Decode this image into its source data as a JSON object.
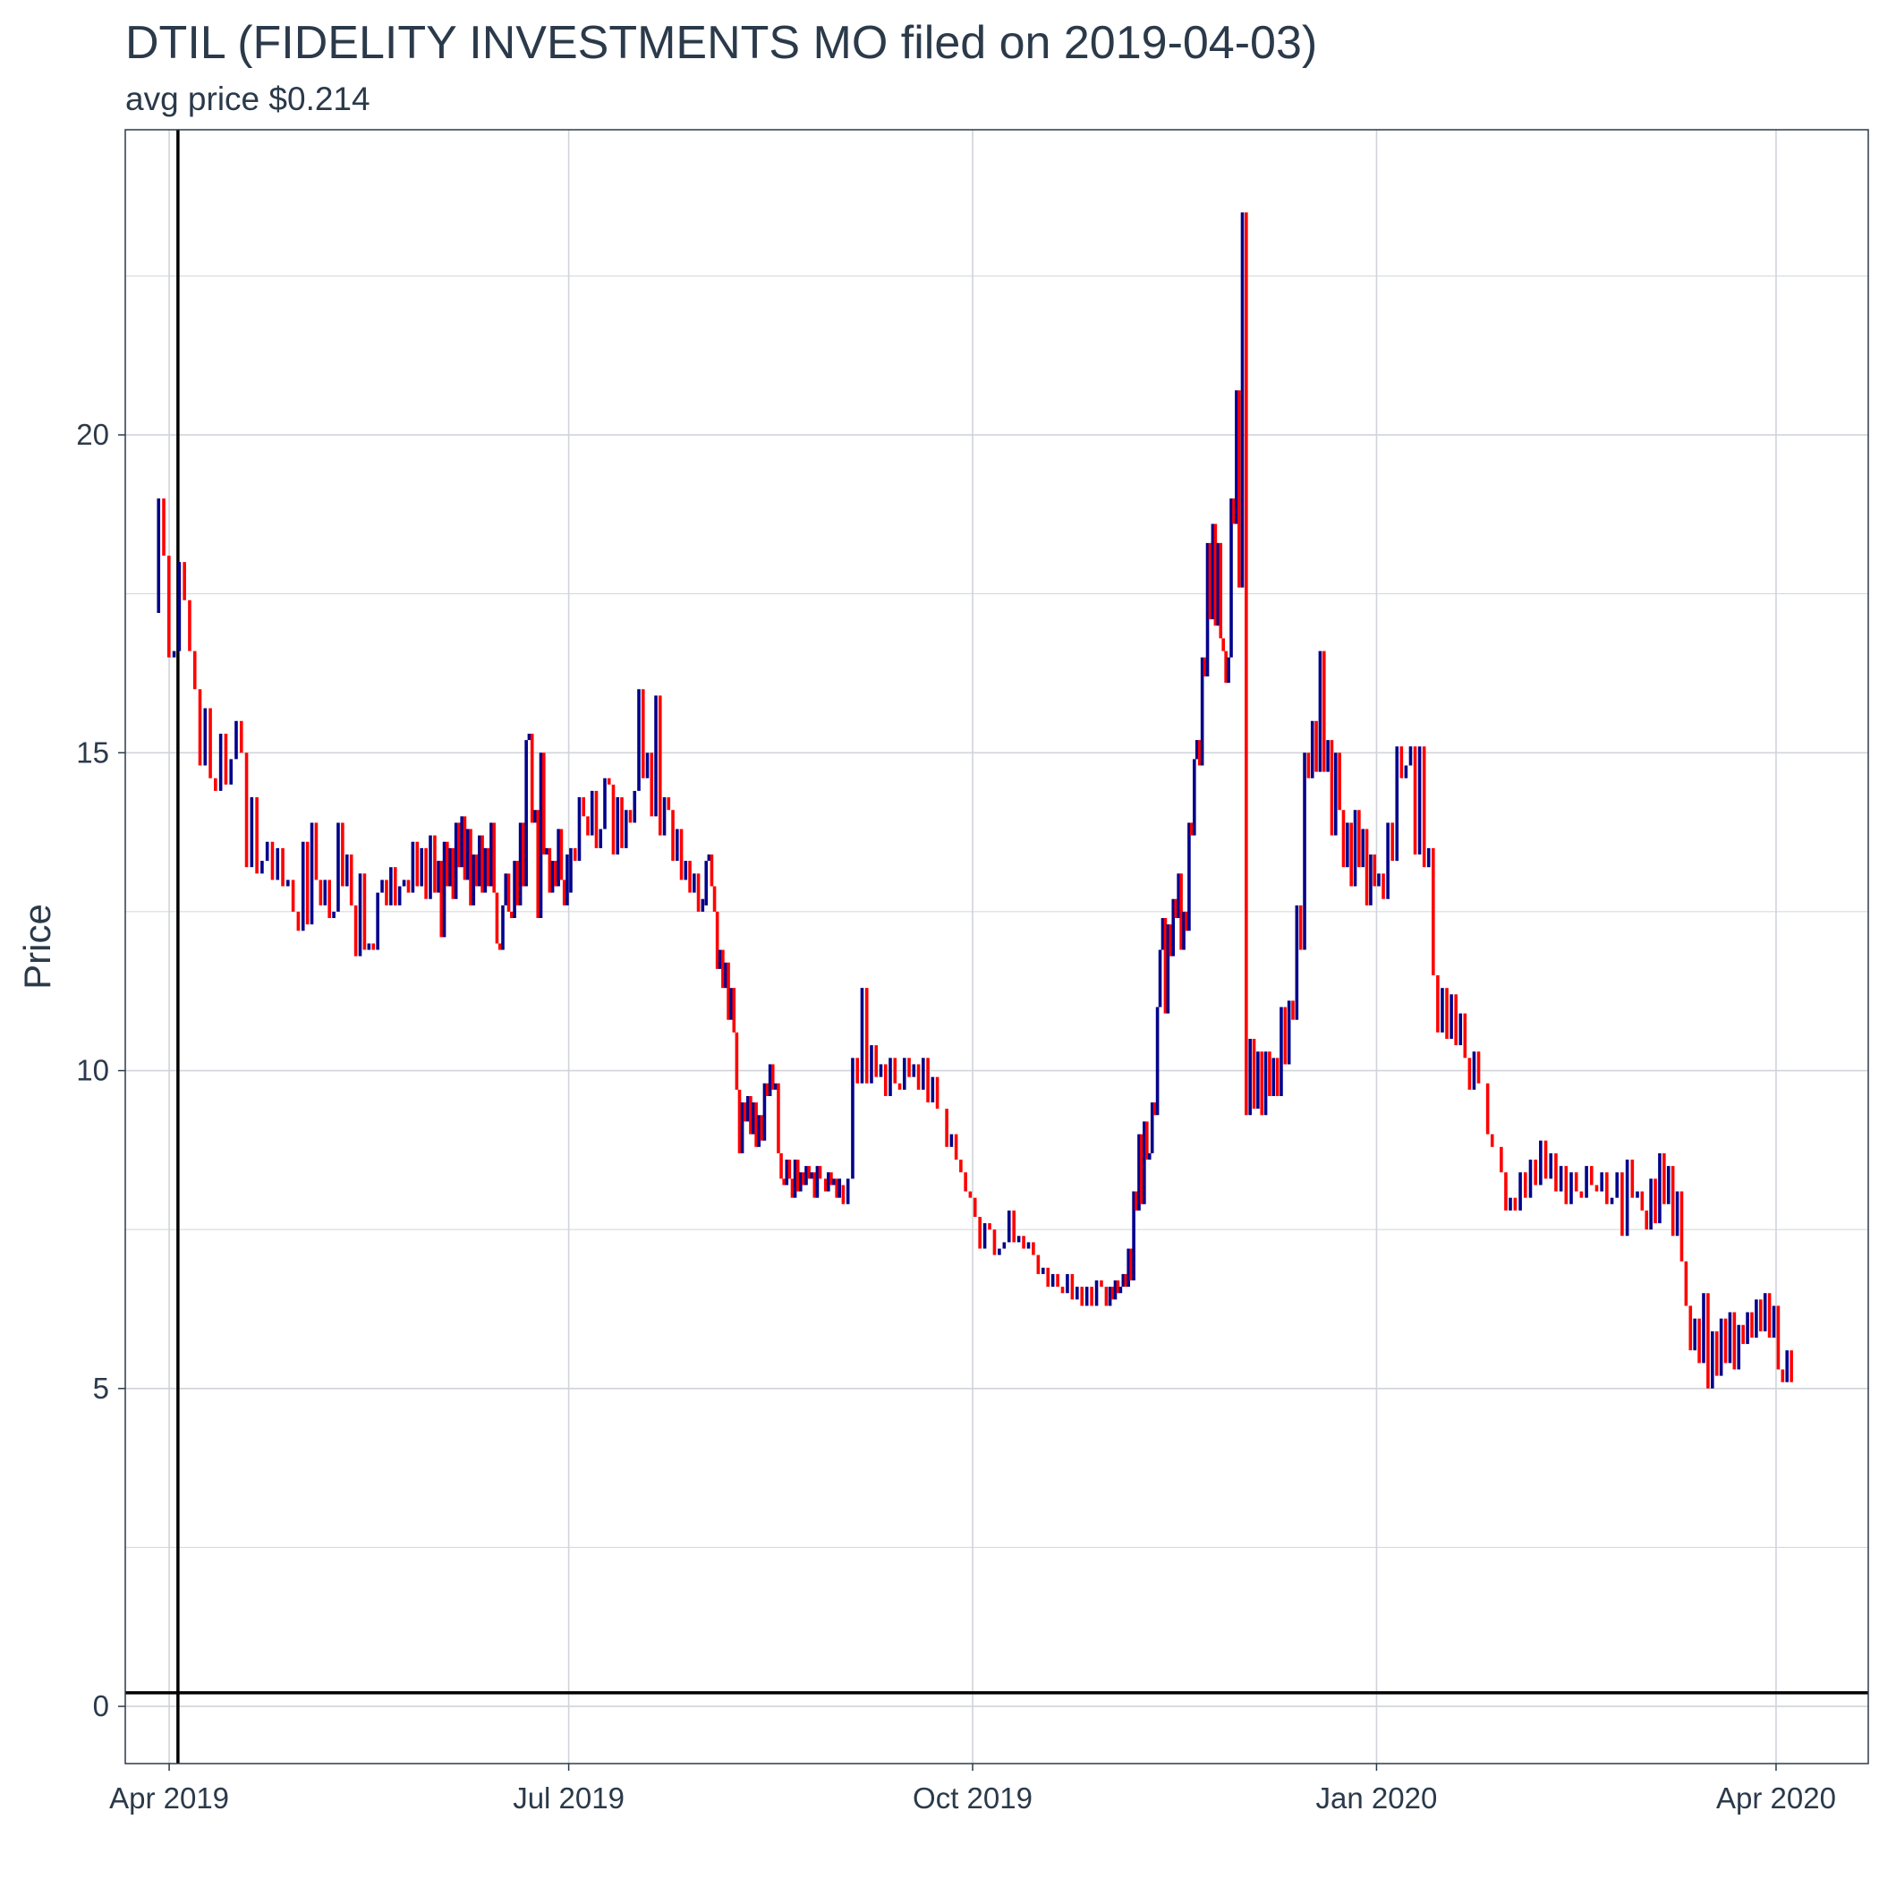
{
  "chart_data": {
    "type": "ohlc",
    "title": "DTIL (FIDELITY INVESTMENTS MO filed on 2019-04-03)",
    "subtitle": "avg price $0.214",
    "xlabel": "",
    "ylabel": "Price",
    "xlim": [
      "2019-03-22",
      "2020-04-22"
    ],
    "ylim": [
      -0.9,
      24.8
    ],
    "x_ticks": [
      {
        "date": "2019-04-01",
        "label": "Apr 2019"
      },
      {
        "date": "2019-07-01",
        "label": "Jul 2019"
      },
      {
        "date": "2019-10-01",
        "label": "Oct 2019"
      },
      {
        "date": "2020-01-01",
        "label": "Jan 2020"
      },
      {
        "date": "2020-04-01",
        "label": "Apr 2020"
      }
    ],
    "y_ticks": [
      0,
      5,
      10,
      15,
      20
    ],
    "y_minor": [
      2.5,
      7.5,
      12.5,
      17.5,
      22.5
    ],
    "grid": true,
    "reference_lines": {
      "vertical_date": "2019-04-03",
      "horizontal_price": 0.214
    },
    "colors": {
      "up": "#00008b",
      "down": "#ff0000",
      "reference": "#000000",
      "grid": "#d0d4d9",
      "text": "#2b3a4a",
      "panel_border": "#2b3a4a"
    },
    "bar_segments": [
      {
        "start": "2019-03-29",
        "end": "2019-05-01",
        "v": [
          17.2,
          19.0,
          18.1,
          16.5,
          16.6,
          18.0,
          17.4,
          16.6,
          16.0,
          14.8,
          15.7,
          14.6,
          14.4,
          15.3,
          14.5,
          14.9,
          15.5,
          15.0,
          13.2,
          14.3,
          13.1,
          13.3,
          13.6,
          13.0,
          13.5,
          12.9,
          13.0,
          12.5,
          12.2
        ]
      },
      {
        "start": "2019-05-01",
        "end": "2019-06-01",
        "v": [
          12.2,
          13.6,
          12.3,
          13.9,
          13.0,
          12.6,
          13.0,
          12.4,
          12.5,
          13.9,
          12.9,
          13.4,
          12.6,
          11.8,
          13.1,
          11.9,
          12.0,
          11.9,
          12.8,
          13.0,
          12.6,
          13.2,
          12.6,
          12.9,
          13.0,
          12.8,
          13.6,
          12.9,
          13.5,
          12.7,
          13.7,
          12.8
        ]
      },
      {
        "start": "2019-06-01",
        "end": "2019-07-01",
        "v": [
          12.8,
          13.3,
          12.1,
          13.6,
          12.9,
          13.5,
          12.7,
          13.9,
          13.2,
          14.0,
          13.0,
          13.8,
          12.6,
          13.4,
          12.9,
          13.7,
          12.8,
          13.5,
          12.9,
          13.9,
          12.8,
          12.0,
          11.9,
          12.6,
          13.1,
          12.5,
          12.4,
          13.3,
          12.6,
          13.9,
          12.9,
          15.2,
          15.3,
          13.9,
          14.1,
          12.4,
          15.0,
          13.4,
          13.5,
          12.8,
          13.3,
          12.9,
          13.8,
          13.0,
          12.6,
          13.4
        ]
      },
      {
        "start": "2019-07-01",
        "end": "2019-08-01",
        "v": [
          12.8,
          13.5,
          13.3,
          14.3,
          14.0,
          13.7,
          14.4,
          13.5,
          13.8,
          14.6,
          14.5,
          13.4,
          14.3,
          13.5,
          14.1,
          13.9,
          14.4,
          16.0,
          14.6,
          15.0,
          14.0,
          15.9,
          13.7,
          14.3,
          14.1,
          13.3,
          13.8,
          13.0,
          13.3,
          12.8,
          13.1,
          12.5,
          12.7
        ]
      },
      {
        "start": "2019-08-01",
        "end": "2019-09-01",
        "v": [
          12.6,
          13.3,
          13.4,
          12.9,
          12.5,
          11.6,
          11.9,
          11.3,
          11.7,
          10.8,
          11.3,
          10.6,
          9.7,
          8.7,
          9.5,
          9.2,
          9.6,
          9.0,
          9.5,
          8.8,
          9.3,
          8.9,
          9.8,
          9.6,
          10.1,
          9.7,
          9.8,
          8.7,
          8.3,
          8.2,
          8.6,
          8.3,
          8.0,
          8.6,
          8.1,
          8.4,
          8.2,
          8.5,
          8.3,
          8.4,
          8.0,
          8.5,
          8.3,
          8.3,
          8.1,
          8.4,
          8.2,
          8.3,
          8.0,
          8.3
        ]
      },
      {
        "start": "2019-09-01",
        "end": "2019-10-01",
        "v": [
          8.2,
          7.9,
          8.3,
          10.2,
          9.8,
          11.3,
          9.8,
          10.4,
          9.9,
          10.1,
          9.6,
          10.2,
          9.8,
          9.7,
          10.2,
          9.9,
          10.1,
          9.7,
          10.2,
          9.5,
          9.9,
          9.4,
          9.4,
          8.8,
          9.0,
          8.6,
          8.4,
          8.1,
          8.0
        ]
      },
      {
        "start": "2019-10-01",
        "end": "2019-11-01",
        "v": [
          8.0,
          7.7,
          7.2,
          7.6,
          7.5,
          7.1,
          7.2,
          7.3,
          7.8,
          7.3,
          7.4,
          7.2,
          7.3,
          7.1,
          6.8,
          6.9,
          6.6,
          6.8,
          6.6,
          6.5,
          6.8,
          6.4,
          6.6,
          6.3,
          6.6,
          6.3,
          6.7,
          6.6,
          6.3
        ]
      },
      {
        "start": "2019-11-01",
        "end": "2019-12-01",
        "v": [
          6.3,
          6.6,
          6.4,
          6.7,
          6.5,
          6.6,
          6.8,
          6.6,
          7.2,
          6.7,
          8.1,
          7.8,
          9.0,
          7.9,
          9.2,
          8.6,
          8.7,
          9.5,
          9.3,
          11.0,
          11.9,
          12.4,
          10.9,
          12.3,
          11.8,
          12.7,
          12.4,
          13.1,
          11.9,
          12.5,
          12.2,
          13.9,
          13.7,
          14.9,
          15.2,
          14.8,
          16.5,
          16.2,
          18.3,
          17.1,
          18.6,
          17.0,
          18.3,
          16.8,
          16.6,
          16.1,
          16.5,
          19.0,
          18.6,
          20.7,
          17.6
        ]
      },
      {
        "start": "2019-12-01",
        "end": "2020-01-01",
        "v": [
          17.6,
          23.5,
          9.3,
          10.5,
          9.4,
          10.3,
          9.3,
          10.3,
          9.6,
          10.2,
          9.6,
          11.0,
          10.1,
          11.1,
          10.8,
          12.6,
          11.9,
          15.0,
          14.6,
          15.5,
          14.7,
          16.6,
          14.7,
          15.2,
          13.7,
          15.0,
          14.1,
          13.2,
          13.9,
          12.9,
          14.1,
          13.2,
          13.8,
          12.6,
          13.4,
          12.9
        ]
      },
      {
        "start": "2020-01-01",
        "end": "2020-02-01",
        "v": [
          12.9,
          13.1,
          12.7,
          13.9,
          13.3,
          15.1,
          14.6,
          14.8,
          15.1,
          13.4,
          15.1,
          13.2,
          13.5,
          11.5,
          10.6,
          11.3,
          10.5,
          11.2,
          10.4,
          10.9,
          10.2,
          9.7,
          10.3,
          9.8,
          9.8,
          9.0,
          8.8,
          8.8,
          8.4,
          7.8,
          8.0
        ]
      },
      {
        "start": "2020-02-01",
        "end": "2020-03-01",
        "v": [
          8.0,
          7.8,
          8.4,
          8.0,
          8.6,
          8.2,
          8.9,
          8.3,
          8.7,
          8.1,
          8.5,
          7.9,
          8.4,
          8.1,
          8.0,
          8.5,
          8.2,
          8.1,
          8.4,
          7.9,
          8.0,
          8.4,
          7.4,
          8.6,
          8.0,
          8.1
        ]
      },
      {
        "start": "2020-03-01",
        "end": "2020-04-05",
        "v": [
          8.1,
          7.8,
          7.5,
          8.3,
          7.6,
          8.7,
          7.9,
          8.5,
          7.4,
          8.1,
          7.0,
          6.3,
          5.6,
          6.1,
          5.4,
          6.5,
          5.0,
          5.9,
          5.2,
          6.1,
          5.4,
          6.2,
          5.3,
          6.0,
          5.7,
          6.2,
          5.8,
          6.4,
          5.9,
          6.5,
          5.8,
          6.3,
          5.3,
          5.1,
          5.6,
          5.1
        ]
      }
    ]
  }
}
